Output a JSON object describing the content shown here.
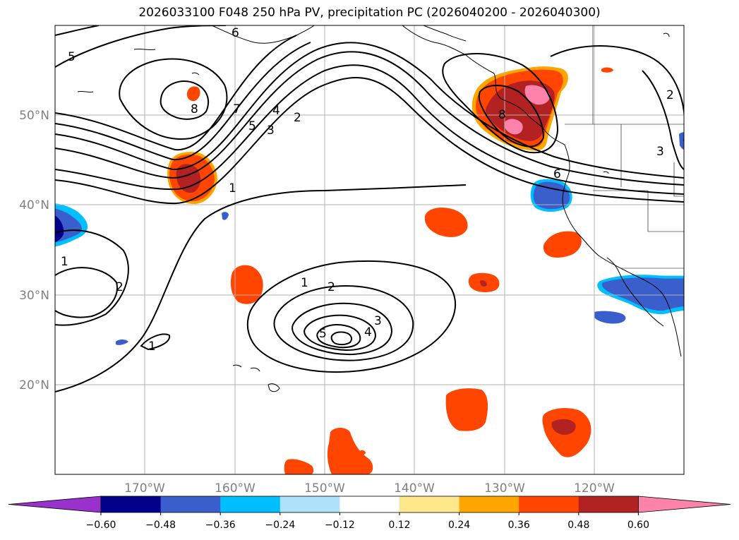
{
  "title": "2026033100 F048 250 hPa PV, precipitation PC (2026040200 - 2026040300)",
  "map": {
    "lon_labels": [
      "170°W",
      "160°W",
      "150°W",
      "140°W",
      "130°W",
      "120°W"
    ],
    "lat_labels": [
      "50°N",
      "40°N",
      "30°N",
      "20°N"
    ],
    "contour_labels": [
      "6",
      "5",
      "8",
      "7",
      "5",
      "4",
      "3",
      "2",
      "1",
      "8",
      "6",
      "2",
      "3",
      "1",
      "1",
      "2",
      "1",
      "2",
      "3",
      "4",
      "5"
    ]
  },
  "colorbar": {
    "ticks": [
      "−0.60",
      "−0.48",
      "−0.36",
      "−0.24",
      "−0.12",
      "0.12",
      "0.24",
      "0.36",
      "0.48",
      "0.60"
    ],
    "colors": [
      "#9932cc",
      "#00008b",
      "#3a5fcd",
      "#00bfff",
      "#aee2fa",
      "#ffffff",
      "#ffe88c",
      "#ffa500",
      "#ff4500",
      "#b22222",
      "#ff82ab"
    ]
  },
  "colors": {
    "red": "#ff4500",
    "dark_red": "#b22222",
    "pink": "#ff82ab",
    "orange": "#ffa500",
    "yellow": "#ffe88c",
    "blue": "#3a5fcd",
    "navy": "#00008b",
    "cyan": "#00bfff",
    "light_blue": "#aee2fa"
  }
}
